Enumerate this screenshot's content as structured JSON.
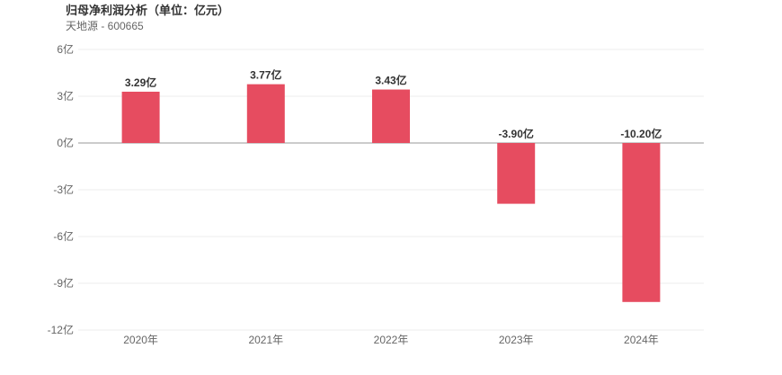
{
  "chart_data": {
    "type": "bar",
    "title": "归母净利润分析（单位：亿元）",
    "subtitle": "天地源 - 600665",
    "categories": [
      "2020年",
      "2021年",
      "2022年",
      "2023年",
      "2024年"
    ],
    "values": [
      3.29,
      3.77,
      3.43,
      -3.9,
      -10.2
    ],
    "data_labels": [
      "3.29亿",
      "3.77亿",
      "3.43亿",
      "-3.90亿",
      "-10.20亿"
    ],
    "y_ticks": [
      6,
      3,
      0,
      -3,
      -6,
      -9,
      -12
    ],
    "y_tick_labels": [
      "6亿",
      "3亿",
      "0亿",
      "-3亿",
      "-6亿",
      "-9亿",
      "-12亿"
    ],
    "ylim": [
      -12,
      6
    ],
    "xlabel": "",
    "ylabel": "",
    "grid": true,
    "legend": "none",
    "colors": {
      "bar": "#e64c60",
      "grid": "#ececec",
      "zero_line": "#999999"
    }
  }
}
